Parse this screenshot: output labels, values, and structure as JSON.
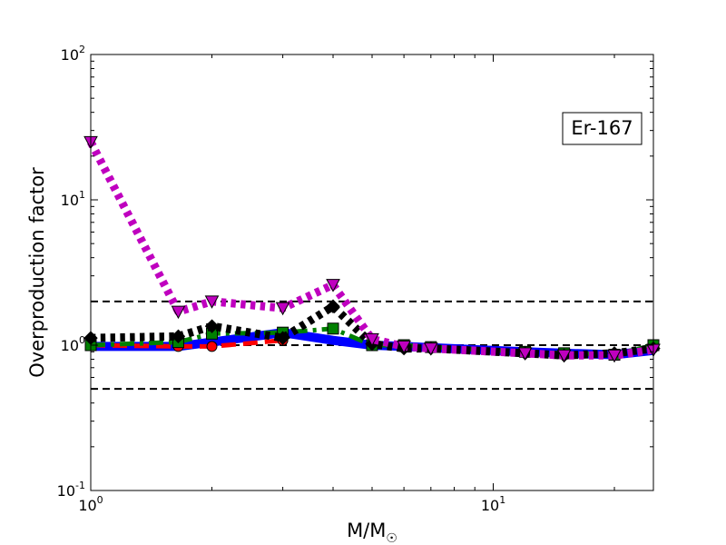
{
  "chart_data": {
    "type": "line",
    "xlabel": "M/M",
    "xlabel_subscript": "☉",
    "ylabel": "Overproduction factor",
    "annotation": "Er-167",
    "xscale": "log",
    "yscale": "log",
    "xlim": [
      1,
      25
    ],
    "ylim": [
      0.1,
      100
    ],
    "x_ticks": [
      {
        "value": 1,
        "base": "10",
        "exp": "0"
      },
      {
        "value": 10,
        "base": "10",
        "exp": "1"
      }
    ],
    "y_ticks": [
      {
        "value": 0.1,
        "base": "10",
        "exp": "-1"
      },
      {
        "value": 1,
        "base": "10",
        "exp": "0"
      },
      {
        "value": 10,
        "base": "10",
        "exp": "1"
      },
      {
        "value": 100,
        "base": "10",
        "exp": "2"
      }
    ],
    "reference_lines": [
      0.5,
      1,
      2
    ],
    "series": [
      {
        "color": "#0000ff",
        "marker": "none",
        "dash": "solid",
        "width": 10,
        "x": [
          1,
          1.65,
          2,
          3,
          4,
          5,
          6,
          7,
          12,
          15,
          20,
          25
        ],
        "y": [
          0.98,
          0.98,
          1.05,
          1.22,
          1.08,
          1.0,
          0.98,
          0.96,
          0.9,
          0.88,
          0.86,
          0.92
        ]
      },
      {
        "color": "#ff0000",
        "marker": "circle",
        "dash": "dashed",
        "width": 5,
        "x": [
          1,
          1.65,
          2,
          3
        ],
        "y": [
          1.0,
          0.98,
          0.98,
          1.08
        ]
      },
      {
        "color": "#008000",
        "marker": "square",
        "dash": "dashdot",
        "width": 5,
        "x": [
          1,
          1.65,
          2,
          3,
          4,
          5,
          6,
          7,
          12,
          15,
          20,
          25
        ],
        "y": [
          1.0,
          1.05,
          1.2,
          1.22,
          1.3,
          1.0,
          1.0,
          0.97,
          0.9,
          0.88,
          0.86,
          1.0
        ]
      },
      {
        "color": "#000000",
        "marker": "diamond",
        "dash": "dotted",
        "width": 9,
        "x": [
          1,
          1.65,
          2,
          3,
          4,
          5,
          6,
          7,
          12,
          15,
          20,
          25
        ],
        "y": [
          1.12,
          1.15,
          1.35,
          1.12,
          1.85,
          1.02,
          0.95,
          0.95,
          0.88,
          0.85,
          0.88,
          0.95
        ]
      },
      {
        "color": "#bf00bf",
        "marker": "triangle-down",
        "dash": "dotted",
        "width": 9,
        "x": [
          1,
          1.65,
          2,
          3,
          4,
          5,
          6,
          7,
          12,
          15,
          20,
          25
        ],
        "y": [
          25,
          1.7,
          2.0,
          1.8,
          2.6,
          1.1,
          0.98,
          0.95,
          0.88,
          0.85,
          0.85,
          0.93
        ]
      }
    ]
  }
}
